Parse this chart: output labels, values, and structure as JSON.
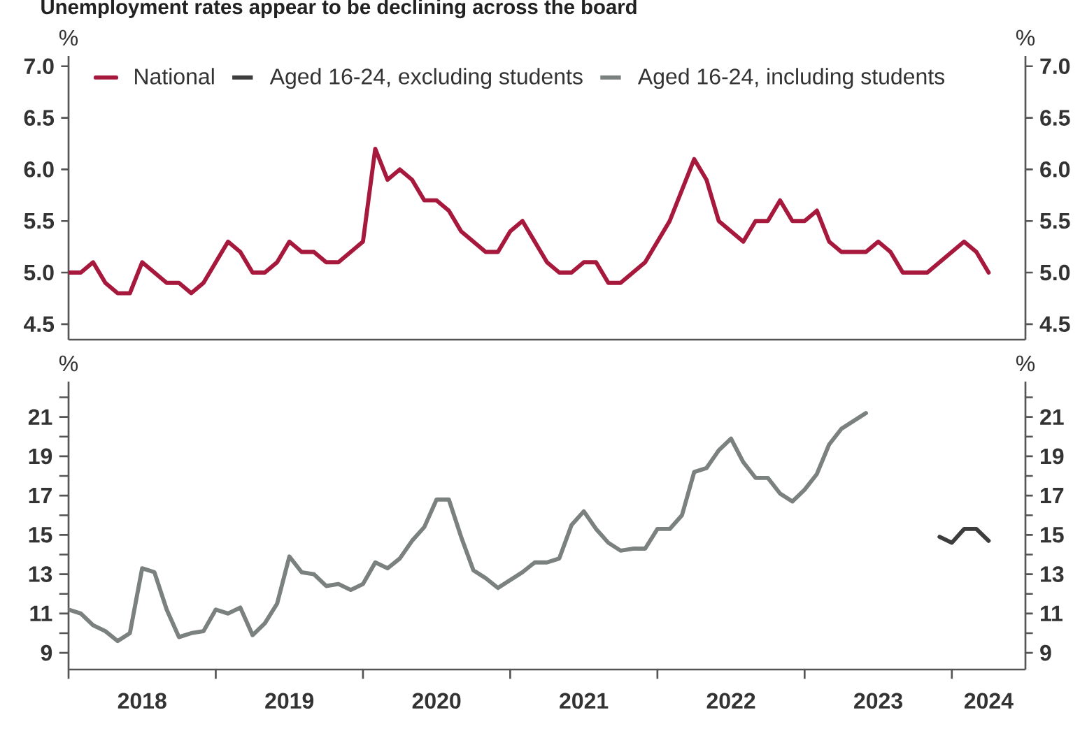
{
  "chart_data": [
    {
      "type": "line",
      "title": "Unemployment rates appear to be declining across the board",
      "ylabel": "%",
      "y2label": "%",
      "xlim": [
        "2018-01",
        "2024-07"
      ],
      "ylim": [
        4.35,
        7.1
      ],
      "tick_labels": "y",
      "legend": "top left",
      "yticks": [
        4.5,
        {
          "value": 5,
          "label": "5.0"
        },
        5.5,
        {
          "value": 6,
          "label": "6.0"
        },
        6.5,
        {
          "value": 7,
          "label": "7.0"
        }
      ],
      "y2lim": [
        4.35,
        7.1
      ],
      "y2ticks": [
        4.5,
        {
          "value": 5,
          "label": "5.0"
        },
        5.5,
        {
          "value": 6,
          "label": "6.0"
        },
        6.5,
        {
          "value": 7,
          "label": "7.0"
        }
      ],
      "series": [
        {
          "name": "National",
          "color": "#a6193c",
          "x": [
            "2018-01",
            "2018-02",
            "2018-03",
            "2018-04",
            "2018-05",
            "2018-06",
            "2018-07",
            "2018-08",
            "2018-09",
            "2018-10",
            "2018-11",
            "2018-12",
            "2019-01",
            "2019-02",
            "2019-03",
            "2019-04",
            "2019-05",
            "2019-06",
            "2019-07",
            "2019-08",
            "2019-09",
            "2019-10",
            "2019-11",
            "2019-12",
            "2020-01",
            "2020-02",
            "2020-03",
            "2020-04",
            "2020-05",
            "2020-06",
            "2020-07",
            "2020-08",
            "2020-09",
            "2020-10",
            "2020-11",
            "2020-12",
            "2021-01",
            "2021-02",
            "2021-03",
            "2021-04",
            "2021-05",
            "2021-06",
            "2021-07",
            "2021-08",
            "2021-09",
            "2021-10",
            "2021-11",
            "2021-12",
            "2022-01",
            "2022-02",
            "2022-03",
            "2022-04",
            "2022-05",
            "2022-06",
            "2022-07",
            "2022-08",
            "2022-09",
            "2022-10",
            "2022-11",
            "2022-12",
            "2023-01",
            "2023-02",
            "2023-03",
            "2023-04",
            "2023-05",
            "2023-06",
            "2023-07",
            "2023-08",
            "2023-09",
            "2023-10",
            "2023-11",
            "2023-12",
            "2024-01",
            "2024-02",
            "2024-03",
            "2024-04"
          ],
          "values": [
            5.0,
            5.0,
            5.1,
            4.9,
            4.8,
            4.8,
            5.1,
            5.0,
            4.9,
            4.9,
            4.8,
            4.9,
            5.1,
            5.3,
            5.2,
            5.0,
            5.0,
            5.1,
            5.3,
            5.2,
            5.2,
            5.1,
            5.1,
            5.2,
            5.3,
            6.2,
            5.9,
            6.0,
            5.9,
            5.7,
            5.7,
            5.6,
            5.4,
            5.3,
            5.2,
            5.2,
            5.4,
            5.5,
            5.3,
            5.1,
            5.0,
            5.0,
            5.1,
            5.1,
            4.9,
            4.9,
            5.0,
            5.1,
            5.3,
            5.5,
            5.8,
            6.1,
            5.9,
            5.5,
            5.4,
            5.3,
            5.5,
            5.5,
            5.7,
            5.5,
            5.5,
            5.6,
            5.3,
            5.2,
            5.2,
            5.2,
            5.3,
            5.2,
            5.0,
            5.0,
            5.0,
            5.1,
            5.2,
            5.3,
            5.2,
            5.0
          ]
        }
      ]
    },
    {
      "type": "line",
      "ylabel": "%",
      "y2label": "%",
      "xlim": [
        "2018-01",
        "2024-07"
      ],
      "ylim": [
        8.15,
        22.8
      ],
      "xticks": [
        {
          "value": "2018-01",
          "label": null
        },
        {
          "value": "2018-07",
          "label": "2018"
        },
        {
          "value": "2019-01",
          "label": null
        },
        {
          "value": "2019-07",
          "label": "2019"
        },
        {
          "value": "2020-01",
          "label": null
        },
        {
          "value": "2020-07",
          "label": "2020"
        },
        {
          "value": "2021-01",
          "label": null
        },
        {
          "value": "2021-07",
          "label": "2021"
        },
        {
          "value": "2022-01",
          "label": null
        },
        {
          "value": "2022-07",
          "label": "2022"
        },
        {
          "value": "2023-01",
          "label": null
        },
        {
          "value": "2023-07",
          "label": "2023"
        },
        {
          "value": "2024-01",
          "label": null
        },
        {
          "value": "2024-04",
          "label": "2024"
        }
      ],
      "yticks": [
        9,
        {
          "value": 10,
          "label": null
        },
        11,
        {
          "value": 12,
          "label": null
        },
        13,
        {
          "value": 14,
          "label": null
        },
        15,
        {
          "value": 16,
          "label": null
        },
        17,
        {
          "value": 18,
          "label": null
        },
        19,
        {
          "value": 20,
          "label": null
        },
        21,
        {
          "value": 22,
          "label": null
        }
      ],
      "y2lim": [
        8.15,
        22.8
      ],
      "y2ticks": [
        9,
        {
          "value": 10,
          "label": null
        },
        11,
        {
          "value": 12,
          "label": null
        },
        13,
        {
          "value": 14,
          "label": null
        },
        15,
        {
          "value": 16,
          "label": null
        },
        17,
        {
          "value": 18,
          "label": null
        },
        19,
        {
          "value": 20,
          "label": null
        },
        21,
        {
          "value": 22,
          "label": null
        }
      ],
      "series": [
        {
          "name": "Aged 16-24, excluding students",
          "color": "#3d3d3d",
          "x": [
            "2023-12",
            "2024-01",
            "2024-02",
            "2024-03",
            "2024-04"
          ],
          "values": [
            14.9,
            14.6,
            15.3,
            15.3,
            14.7
          ]
        },
        {
          "name": "Aged 16-24, including students",
          "color": "#7b817e",
          "x": [
            "2018-01",
            "2018-02",
            "2018-03",
            "2018-04",
            "2018-05",
            "2018-06",
            "2018-07",
            "2018-08",
            "2018-09",
            "2018-10",
            "2018-11",
            "2018-12",
            "2019-01",
            "2019-02",
            "2019-03",
            "2019-04",
            "2019-05",
            "2019-06",
            "2019-07",
            "2019-08",
            "2019-09",
            "2019-10",
            "2019-11",
            "2019-12",
            "2020-01",
            "2020-02",
            "2020-03",
            "2020-04",
            "2020-05",
            "2020-06",
            "2020-07",
            "2020-08",
            "2020-09",
            "2020-10",
            "2020-11",
            "2020-12",
            "2021-01",
            "2021-02",
            "2021-03",
            "2021-04",
            "2021-05",
            "2021-06",
            "2021-07",
            "2021-08",
            "2021-09",
            "2021-10",
            "2021-11",
            "2021-12",
            "2022-01",
            "2022-02",
            "2022-03",
            "2022-04",
            "2022-05",
            "2022-06",
            "2022-07",
            "2022-08",
            "2022-09",
            "2022-10",
            "2022-11",
            "2022-12",
            "2023-01",
            "2023-02",
            "2023-03",
            "2023-04",
            "2023-05",
            "2023-06"
          ],
          "values": [
            11.2,
            11.0,
            10.4,
            10.1,
            9.6,
            10.0,
            13.3,
            13.1,
            11.2,
            9.8,
            10.0,
            10.1,
            11.2,
            11.0,
            11.3,
            9.9,
            10.5,
            11.5,
            13.9,
            13.1,
            13.0,
            12.4,
            12.5,
            12.2,
            12.5,
            13.6,
            13.3,
            13.8,
            14.7,
            15.4,
            16.8,
            16.8,
            14.9,
            13.2,
            12.8,
            12.3,
            12.7,
            13.1,
            13.6,
            13.6,
            13.8,
            15.5,
            16.2,
            15.3,
            14.6,
            14.2,
            14.3,
            14.3,
            15.3,
            15.3,
            16.0,
            18.2,
            18.4,
            19.3,
            19.9,
            18.7,
            17.9,
            17.9,
            17.1,
            16.7,
            17.3,
            18.1,
            19.6,
            20.4,
            20.8,
            21.2
          ]
        }
      ]
    }
  ]
}
